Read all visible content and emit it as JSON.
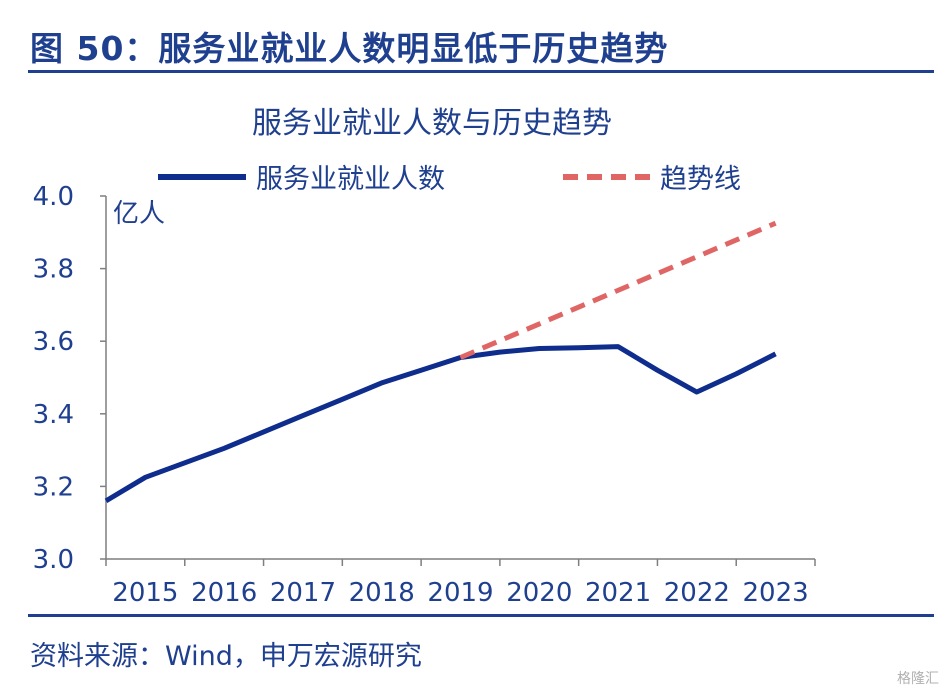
{
  "figure": {
    "title": "图 50：服务业就业人数明显低于历史趋势",
    "source": "资料来源：Wind，申万宏源研究",
    "watermark": "格隆汇"
  },
  "chart_data": {
    "type": "line",
    "title": "服务业就业人数与历史趋势",
    "ylabel": "亿人",
    "xlabel": "",
    "ylim": [
      3.0,
      4.0
    ],
    "yticks": [
      "3.0",
      "3.2",
      "3.4",
      "3.6",
      "3.8",
      "4.0"
    ],
    "categories": [
      "2015",
      "2016",
      "2017",
      "2018",
      "2019",
      "2020",
      "2021",
      "2022",
      "2023"
    ],
    "legend_position": "top",
    "grid": false,
    "series": [
      {
        "name": "服务业就业人数",
        "style": "solid",
        "color": "#0e2d8c",
        "x": [
          2014.5,
          2015.0,
          2015.5,
          2016.0,
          2016.5,
          2017.0,
          2017.5,
          2018.0,
          2018.5,
          2019.0,
          2019.5,
          2020.0,
          2020.5,
          2021.0,
          2021.5,
          2022.0,
          2022.5,
          2023.0
        ],
        "values": [
          3.16,
          3.225,
          3.265,
          3.305,
          3.35,
          3.395,
          3.44,
          3.485,
          3.52,
          3.555,
          3.57,
          3.58,
          3.582,
          3.585,
          3.52,
          3.46,
          3.51,
          3.565
        ]
      },
      {
        "name": "趋势线",
        "style": "dashed",
        "color": "#e06666",
        "x": [
          2019.0,
          2023.0
        ],
        "values": [
          3.555,
          3.925
        ]
      }
    ]
  }
}
